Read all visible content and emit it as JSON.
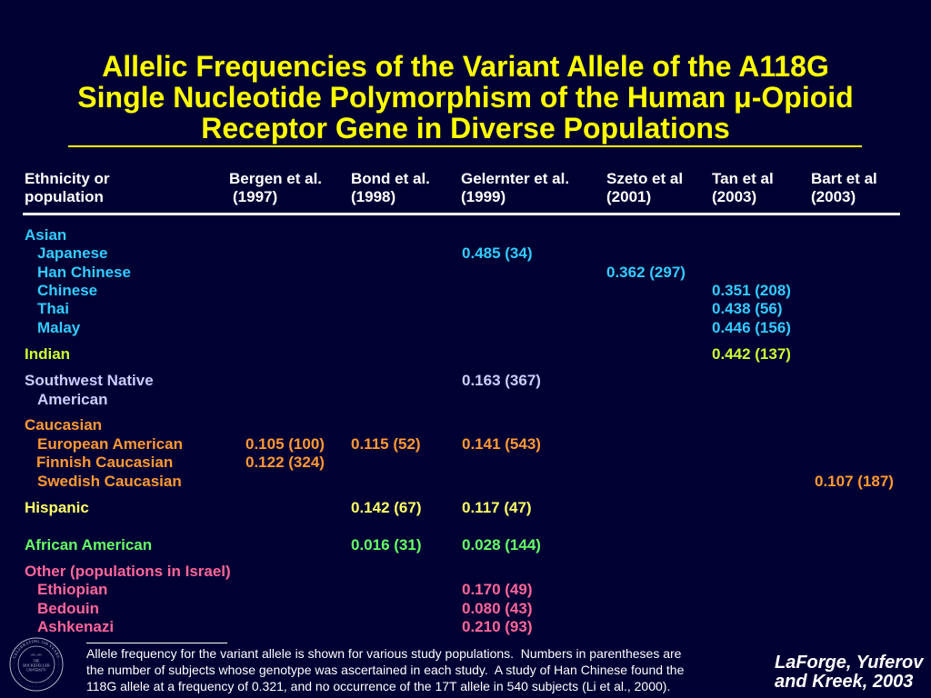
{
  "theme": {
    "background": "#000033",
    "title": "#ffff00",
    "text": "#ffffff"
  },
  "title": {
    "lines": [
      "Allelic Frequencies of the Variant Allele of the A118G",
      "Single Nucleotide Polymorphism of the Human μ-Opioid",
      "Receptor Gene in Diverse Populations"
    ]
  },
  "table": {
    "headers": [
      [
        "Ethnicity or",
        "population"
      ],
      [
        "Bergen et al.",
        "(1997)"
      ],
      [
        "Bond et al.",
        "(1998)"
      ],
      [
        "Gelernter et al.",
        "(1999)"
      ],
      [
        "Szeto et al",
        "(2001)"
      ],
      [
        "Tan et al",
        "(2003)"
      ],
      [
        "Bart et al",
        "(2003)"
      ]
    ],
    "groups": [
      {
        "label": "Asian",
        "color": "#33ccff",
        "rows": [
          {
            "label": "Japanese",
            "values": [
              null,
              null,
              "0.485 (34)",
              null,
              null,
              null
            ]
          },
          {
            "label": "Han Chinese",
            "values": [
              null,
              null,
              null,
              "0.362 (297)",
              null,
              null
            ]
          },
          {
            "label": "Chinese",
            "values": [
              null,
              null,
              null,
              null,
              "0.351 (208)",
              null
            ]
          },
          {
            "label": "Thai",
            "values": [
              null,
              null,
              null,
              null,
              "0.438 (56)",
              null
            ]
          },
          {
            "label": "Malay",
            "values": [
              null,
              null,
              null,
              null,
              "0.446 (156)",
              null
            ]
          }
        ]
      },
      {
        "label": "Indian",
        "color": "#ccff33",
        "values": [
          null,
          null,
          null,
          null,
          "0.442 (137)",
          null
        ]
      },
      {
        "label": "Southwest Native",
        "label_continued": "American",
        "color": "#ccccff",
        "values": [
          null,
          null,
          "0.163 (367)",
          null,
          null,
          null
        ]
      },
      {
        "label": "Caucasian",
        "color": "#ff9933",
        "rows": [
          {
            "label": "European American",
            "values": [
              "0.105 (100)",
              "0.115 (52)",
              "0.141 (543)",
              null,
              null,
              null
            ]
          },
          {
            "label": "Finnish Caucasian",
            "values": [
              "0.122 (324)",
              null,
              null,
              null,
              null,
              null
            ]
          },
          {
            "label": "Swedish Caucasian",
            "values": [
              null,
              null,
              null,
              null,
              null,
              "0.107 (187)"
            ]
          }
        ]
      },
      {
        "label": "Hispanic",
        "color": "#ffff66",
        "values": [
          null,
          "0.142 (67)",
          "0.117 (47)",
          null,
          null,
          null
        ]
      },
      {
        "label": "African American",
        "color": "#66ff66",
        "values": [
          null,
          "0.016 (31)",
          "0.028 (144)",
          null,
          null,
          null
        ]
      },
      {
        "label": "Other (populations in Israel)",
        "color": "#ff6699",
        "rows": [
          {
            "label": "Ethiopian",
            "values": [
              null,
              null,
              "0.170 (49)",
              null,
              null,
              null
            ]
          },
          {
            "label": "Bedouin",
            "values": [
              null,
              null,
              "0.080 (43)",
              null,
              null,
              null
            ]
          },
          {
            "label": "Ashkenazi",
            "values": [
              null,
              null,
              "0.210 (93)",
              null,
              null,
              null
            ]
          }
        ]
      }
    ]
  },
  "footnote": {
    "lines": [
      "Allele frequency for the variant allele is shown for various study populations.  Numbers in parentheses are",
      "the number of subjects whose genotype was ascertained in each study.  A study of Han Chinese found the",
      "118G allele at a frequency of 0.321, and no occurrence of the 17T allele in 540 subjects (Li et al., 2000)."
    ]
  },
  "citation": {
    "lines": [
      "LaForge, Yuferov",
      "and Kreek, 2003"
    ]
  },
  "logo": {
    "icon": "university-seal-icon",
    "ring_text": "CELEBRATING 100 YEARS",
    "years": "1901-2001",
    "name_lines": [
      "THE",
      "ROCKEFELLER",
      "UNIVERSITY"
    ]
  }
}
